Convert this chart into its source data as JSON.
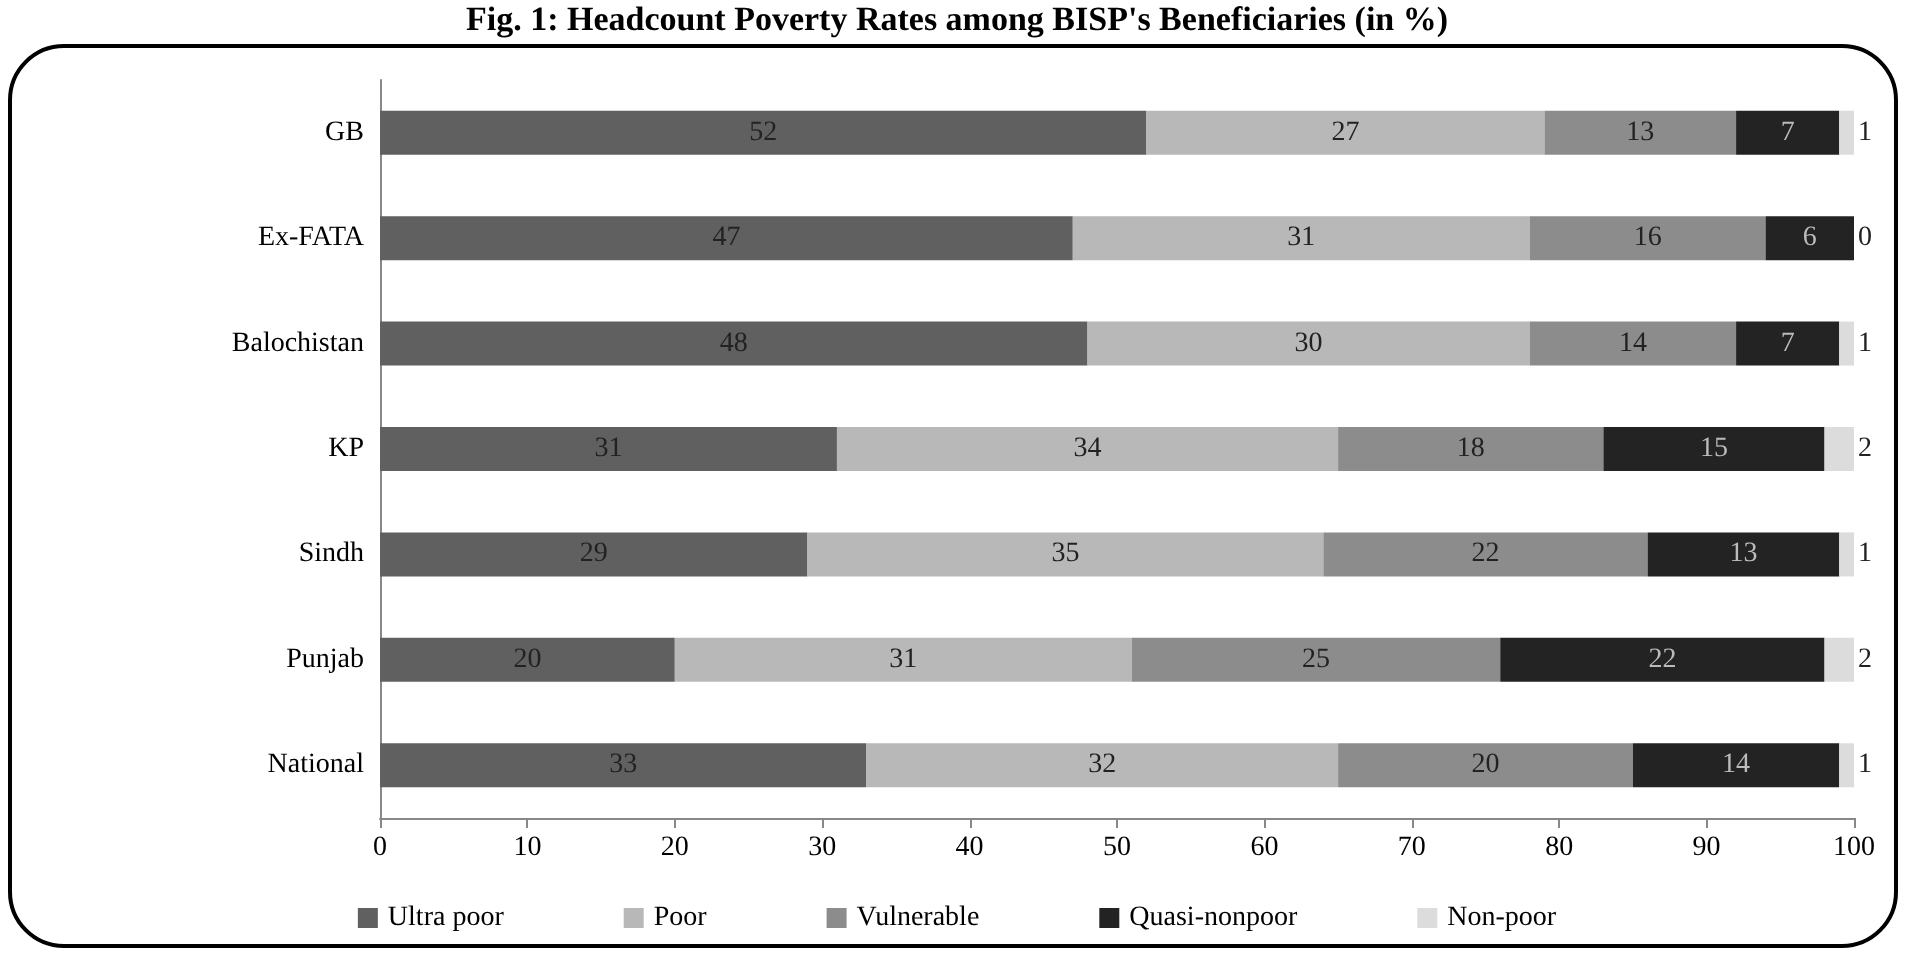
{
  "chart_data": {
    "type": "bar",
    "orientation": "horizontal",
    "stacked": true,
    "title": "Fig. 1: Headcount Poverty Rates among BISP's Beneficiaries (in %)",
    "categories": [
      "GB",
      "Ex-FATA",
      "Balochistan",
      "KP",
      "Sindh",
      "Punjab",
      "National"
    ],
    "series": [
      {
        "name": "Ultra poor",
        "color": "#606060",
        "values": [
          52,
          47,
          48,
          31,
          29,
          20,
          33
        ]
      },
      {
        "name": "Poor",
        "color": "#b8b8b8",
        "values": [
          27,
          31,
          30,
          34,
          35,
          31,
          32
        ]
      },
      {
        "name": "Vulnerable",
        "color": "#8c8c8c",
        "values": [
          13,
          16,
          14,
          18,
          22,
          25,
          20
        ]
      },
      {
        "name": "Quasi-nonpoor",
        "color": "#232323",
        "values": [
          7,
          6,
          7,
          15,
          13,
          22,
          14
        ]
      },
      {
        "name": "Non-poor",
        "color": "#dcdcdc",
        "values": [
          1,
          0,
          1,
          2,
          1,
          2,
          1
        ]
      }
    ],
    "xlim": [
      0,
      100
    ],
    "xticks": [
      0,
      10,
      20,
      30,
      40,
      50,
      60,
      70,
      80,
      90,
      100
    ],
    "data_labels": true,
    "grid": false,
    "legend": "bottom"
  }
}
